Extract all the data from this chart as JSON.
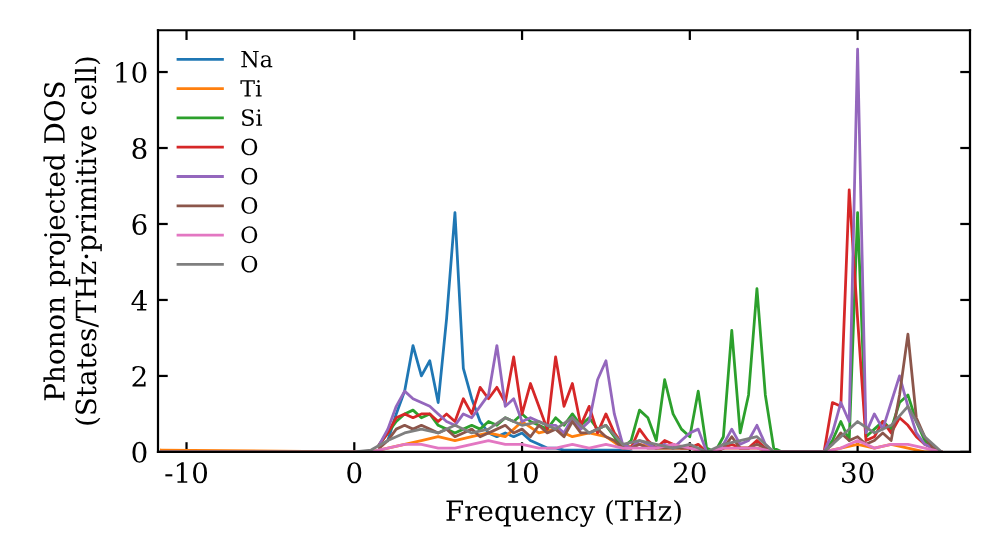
{
  "chart_data": {
    "type": "line",
    "xlabel": "Frequency (THz)",
    "ylabel": "Phonon projected DOS\n(States/THz·primitive cell)",
    "xlim": [
      -11.7,
      36.7
    ],
    "ylim": [
      0,
      11.1
    ],
    "xticks": [
      -10,
      0,
      10,
      20,
      30
    ],
    "yticks": [
      0,
      2,
      4,
      6,
      8,
      10
    ],
    "grid": false,
    "legend": "top left",
    "line_style": "solid",
    "marker": "none",
    "x": [
      1.5,
      2,
      2.5,
      3,
      3.5,
      4,
      4.5,
      5,
      5.5,
      6,
      6.5,
      7,
      7.5,
      8,
      8.5,
      9,
      9.5,
      10,
      10.5,
      11,
      11.5,
      12,
      12.5,
      13,
      13.5,
      14,
      14.5,
      15,
      15.5,
      16,
      16.5,
      17,
      17.5,
      18,
      18.5,
      19,
      19.5,
      20,
      20.5,
      21,
      21.5,
      22,
      22.5,
      23,
      23.5,
      24,
      24.5,
      25,
      25.5,
      26,
      26.5,
      27,
      27.5,
      28,
      28.5,
      29,
      29.5,
      30,
      30.5,
      31,
      31.5,
      32,
      32.5,
      33,
      33.5,
      34,
      34.5,
      35
    ],
    "series": [
      {
        "name": "Na",
        "color": "#1f77b4",
        "values": [
          null,
          0.3,
          1.0,
          1.6,
          2.8,
          2.0,
          2.4,
          1.3,
          3.5,
          6.3,
          2.2,
          1.4,
          0.8,
          0.5,
          0.4,
          0.5,
          0.4,
          0.5,
          0.3,
          0.2,
          0.1,
          0.1,
          0.05,
          0.05,
          0.05,
          0.05,
          0.05,
          0.05,
          0.05,
          0.05,
          0,
          null,
          null,
          null,
          null,
          null,
          null,
          null,
          null,
          null,
          null,
          null,
          null,
          null,
          null,
          null,
          null,
          null,
          null,
          null,
          null,
          null,
          null,
          null,
          null,
          null,
          null,
          null,
          null,
          null,
          null,
          null,
          null,
          null,
          null,
          null,
          null,
          null
        ]
      },
      {
        "name": "Ti",
        "color": "#ff7f0e",
        "x": [
          -11.5,
          0,
          1,
          2,
          3,
          4,
          5,
          6,
          7,
          8,
          9,
          10,
          11,
          12,
          13,
          14,
          15,
          16,
          17,
          18,
          19,
          20,
          21,
          22,
          23,
          24,
          25,
          26,
          27,
          28,
          29,
          30,
          31,
          32,
          33,
          34,
          35
        ],
        "values": [
          0.05,
          0,
          0,
          0.1,
          0.2,
          0.3,
          0.4,
          0.3,
          0.4,
          0.5,
          0.4,
          0.8,
          0.5,
          0.6,
          0.4,
          0.5,
          0.4,
          0.1,
          0.2,
          0.1,
          0.1,
          0.1,
          0,
          0.1,
          0.1,
          0.1,
          0,
          0,
          0,
          0,
          0.1,
          0.2,
          0.1,
          0.2,
          0.1,
          0,
          0
        ]
      },
      {
        "name": "Si",
        "color": "#2ca02c",
        "values": [
          0.2,
          0.5,
          0.8,
          1.0,
          1.1,
          0.9,
          1.0,
          0.7,
          0.6,
          0.5,
          0.6,
          0.7,
          0.6,
          0.8,
          0.7,
          0.9,
          0.8,
          1.0,
          0.8,
          0.7,
          0.6,
          0.9,
          0.7,
          1.0,
          0.7,
          0.9,
          0.6,
          0.7,
          0.4,
          0.1,
          0.3,
          1.1,
          0.9,
          0.3,
          1.9,
          1.0,
          0.6,
          0.4,
          1.6,
          0.1,
          0,
          0.4,
          3.2,
          0.5,
          1.5,
          4.3,
          1.5,
          0.1,
          0,
          0,
          0,
          0,
          0,
          0,
          0.3,
          0.8,
          0.3,
          6.3,
          0.4,
          0.6,
          0.8,
          0.6,
          1.3,
          1.5,
          0.8,
          0.3,
          0.1,
          0
        ]
      },
      {
        "name": "O",
        "color": "#d62728",
        "values": [
          0.2,
          0.5,
          0.9,
          1.0,
          0.9,
          1.0,
          1.0,
          0.8,
          1.0,
          0.8,
          1.4,
          1.0,
          1.7,
          1.4,
          1.7,
          1.3,
          2.5,
          1.0,
          1.8,
          1.2,
          0.6,
          2.5,
          1.2,
          1.8,
          0.7,
          1.2,
          0.5,
          1.0,
          0.5,
          0.2,
          0.1,
          0.6,
          0.3,
          0.1,
          0.3,
          0.2,
          0.1,
          0.1,
          0.2,
          0,
          0,
          0.1,
          0.2,
          0.1,
          0.1,
          0.3,
          0.1,
          0,
          0,
          0,
          0,
          0,
          0,
          0,
          1.3,
          1.2,
          6.9,
          3.5,
          0.3,
          0.4,
          0.8,
          0.5,
          0.9,
          0.7,
          0.4,
          0.2,
          0.1,
          0
        ]
      },
      {
        "name": "O",
        "color": "#9467bd",
        "values": [
          0.2,
          0.6,
          1.2,
          1.6,
          1.4,
          1.3,
          1.2,
          1.0,
          0.8,
          0.7,
          1.0,
          0.9,
          1.2,
          1.5,
          2.8,
          1.2,
          1.4,
          0.8,
          0.9,
          0.8,
          0.7,
          0.7,
          0.5,
          0.9,
          0.6,
          0.8,
          1.9,
          2.4,
          1.0,
          0.2,
          0.1,
          0.3,
          0.2,
          0.1,
          0.2,
          0.1,
          0.3,
          0.5,
          0.6,
          0,
          0,
          0.2,
          0.6,
          0.2,
          0.3,
          0.7,
          0.2,
          0,
          0,
          0,
          0,
          0,
          0,
          0,
          0.5,
          1.3,
          0.8,
          10.6,
          0.5,
          1.0,
          0.6,
          1.3,
          2.0,
          1.2,
          0.5,
          0.2,
          0.1,
          0
        ]
      },
      {
        "name": "O",
        "color": "#8c564b",
        "values": [
          0.1,
          0.3,
          0.6,
          0.7,
          0.6,
          0.7,
          0.6,
          0.5,
          0.6,
          0.4,
          0.5,
          0.6,
          0.4,
          0.5,
          0.6,
          0.7,
          0.5,
          0.6,
          0.4,
          0.7,
          0.5,
          0.6,
          0.4,
          0.8,
          0.5,
          0.5,
          0.6,
          0.4,
          0.3,
          0.1,
          0.1,
          0.2,
          0.1,
          0.1,
          0.1,
          0.1,
          0.1,
          0.1,
          0.1,
          0,
          0,
          0.1,
          0.4,
          0.1,
          0.1,
          0.2,
          0.1,
          0,
          0,
          0,
          0,
          0,
          0,
          0,
          0.2,
          0.5,
          0.3,
          0.4,
          0.2,
          0.3,
          0.5,
          0.3,
          1.5,
          3.1,
          0.9,
          0.4,
          0.1,
          0
        ]
      },
      {
        "name": "O",
        "color": "#e377c2",
        "x": [
          -11.5,
          0,
          1,
          2,
          3,
          4,
          5,
          6,
          7,
          8,
          9,
          10,
          11,
          12,
          13,
          14,
          15,
          16,
          17,
          18,
          19,
          20,
          21,
          22,
          23,
          24,
          25,
          26,
          27,
          28,
          29,
          30,
          31,
          32,
          33,
          34,
          35
        ],
        "values": [
          0,
          0,
          0,
          0.1,
          0.2,
          0.2,
          0.1,
          0.1,
          0.2,
          0.3,
          0.2,
          0.2,
          0.1,
          0.1,
          0.2,
          0.1,
          0.2,
          0.1,
          0.1,
          0.1,
          0.2,
          0.1,
          0,
          0.1,
          0.1,
          0.1,
          0,
          0,
          0,
          0,
          0.1,
          0.3,
          0.1,
          0.2,
          0.2,
          0.1,
          0
        ]
      },
      {
        "name": "O",
        "color": "#7f7f7f",
        "x": [
          -11.5,
          0,
          1,
          2,
          3,
          4,
          5,
          6,
          7,
          8,
          9,
          10,
          11,
          12,
          13,
          14,
          15,
          16,
          17,
          18,
          19,
          20,
          21,
          22,
          23,
          24,
          25,
          26,
          27,
          28,
          29,
          30,
          31,
          32,
          33,
          34,
          35
        ],
        "values": [
          0,
          0,
          0.05,
          0.3,
          0.5,
          0.6,
          0.5,
          0.7,
          0.5,
          0.6,
          0.9,
          0.7,
          0.8,
          0.6,
          0.9,
          0.5,
          0.7,
          0.2,
          0.3,
          0.2,
          0.1,
          0.2,
          0,
          0.2,
          0.3,
          0.4,
          0,
          0,
          0,
          0,
          0.4,
          0.8,
          0.5,
          0.7,
          1.2,
          0.4,
          0
        ]
      }
    ]
  }
}
